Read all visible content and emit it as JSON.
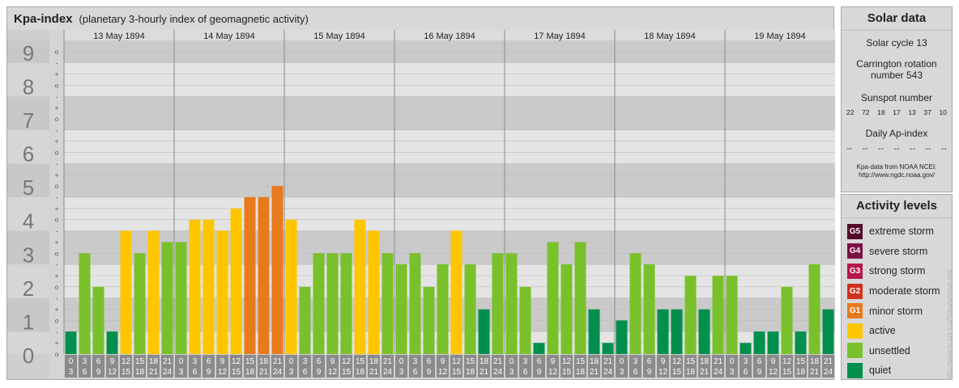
{
  "chart_panel": {
    "title": "Kpa-index",
    "subtitle": "(planetary 3-hourly index of geomagnetic activity)"
  },
  "chart_data": {
    "type": "bar",
    "title": "Kpa-index",
    "subtitle": "(planetary 3-hourly index of geomagnetic activity)",
    "ylim": [
      0,
      9
    ],
    "y_ticks": [
      "0",
      "1",
      "2",
      "3",
      "4",
      "5",
      "6",
      "7",
      "8",
      "9"
    ],
    "sub_ticks": [
      "-",
      "o",
      "+"
    ],
    "days": [
      "13 May 1894",
      "14 May 1894",
      "15 May 1894",
      "16 May 1894",
      "17 May 1894",
      "18 May 1894",
      "19 May 1894"
    ],
    "x_top": [
      "0",
      "3",
      "6",
      "9",
      "12",
      "15",
      "18",
      "21"
    ],
    "x_bottom": [
      "3",
      "6",
      "9",
      "12",
      "15",
      "18",
      "21",
      "24"
    ],
    "values": [
      [
        0.67,
        3,
        2,
        0.67,
        3.67,
        3,
        3.67,
        3.33
      ],
      [
        3.33,
        4,
        4,
        3.67,
        4.33,
        4.67,
        4.67,
        5
      ],
      [
        4,
        2,
        3,
        3,
        3,
        4,
        3.67,
        3
      ],
      [
        2.67,
        3,
        2,
        2.67,
        3.67,
        2.67,
        1.33,
        3
      ],
      [
        3,
        2,
        0.33,
        3.33,
        2.67,
        3.33,
        1.33,
        0.33
      ],
      [
        1,
        3,
        2.67,
        1.33,
        1.33,
        2.33,
        1.33,
        2.33
      ],
      [
        2.33,
        0.33,
        0.67,
        0.67,
        2,
        0.67,
        2.67,
        1.33
      ]
    ],
    "colors": {
      "quiet": "#008f4c",
      "unsettled": "#79c12a",
      "active": "#ffc600",
      "minor_storm": "#e87a1c",
      "moderate_storm": "#d0311c",
      "strong_storm": "#b5174d",
      "severe_storm": "#7c1244",
      "extreme_storm": "#520a27"
    }
  },
  "solar": {
    "title": "Solar data",
    "cycle": "Solar cycle 13",
    "carrington_line1": "Carrington rotation",
    "carrington_line2": "number 543",
    "ssn_title": "Sunspot number",
    "ssn_values": [
      "22",
      "72",
      "18",
      "17",
      "13",
      "37",
      "10"
    ],
    "ap_title": "Daily Ap-index",
    "ap_values": [
      "--",
      "--",
      "--",
      "--",
      "--",
      "--",
      "--"
    ],
    "credit1": "Kpa-data from NOAA NCEI:",
    "credit2": "http://www.ngdc.noaa.gov/"
  },
  "activity": {
    "title": "Activity levels",
    "items": [
      {
        "code": "G5",
        "label": "extreme storm",
        "color": "#520a27"
      },
      {
        "code": "G4",
        "label": "severe storm",
        "color": "#7c1244"
      },
      {
        "code": "G3",
        "label": "strong storm",
        "color": "#b5174d"
      },
      {
        "code": "G2",
        "label": "moderate storm",
        "color": "#d0311c"
      },
      {
        "code": "G1",
        "label": "minor storm",
        "color": "#e87a1c"
      },
      {
        "code": "",
        "label": "active",
        "color": "#ffc600"
      },
      {
        "code": "",
        "label": "unsettled",
        "color": "#79c12a"
      },
      {
        "code": "",
        "label": "quiet",
        "color": "#008f4c"
      }
    ]
  },
  "side_credit": "http://www.fe.uni-lj.si/fizika/archive.php"
}
